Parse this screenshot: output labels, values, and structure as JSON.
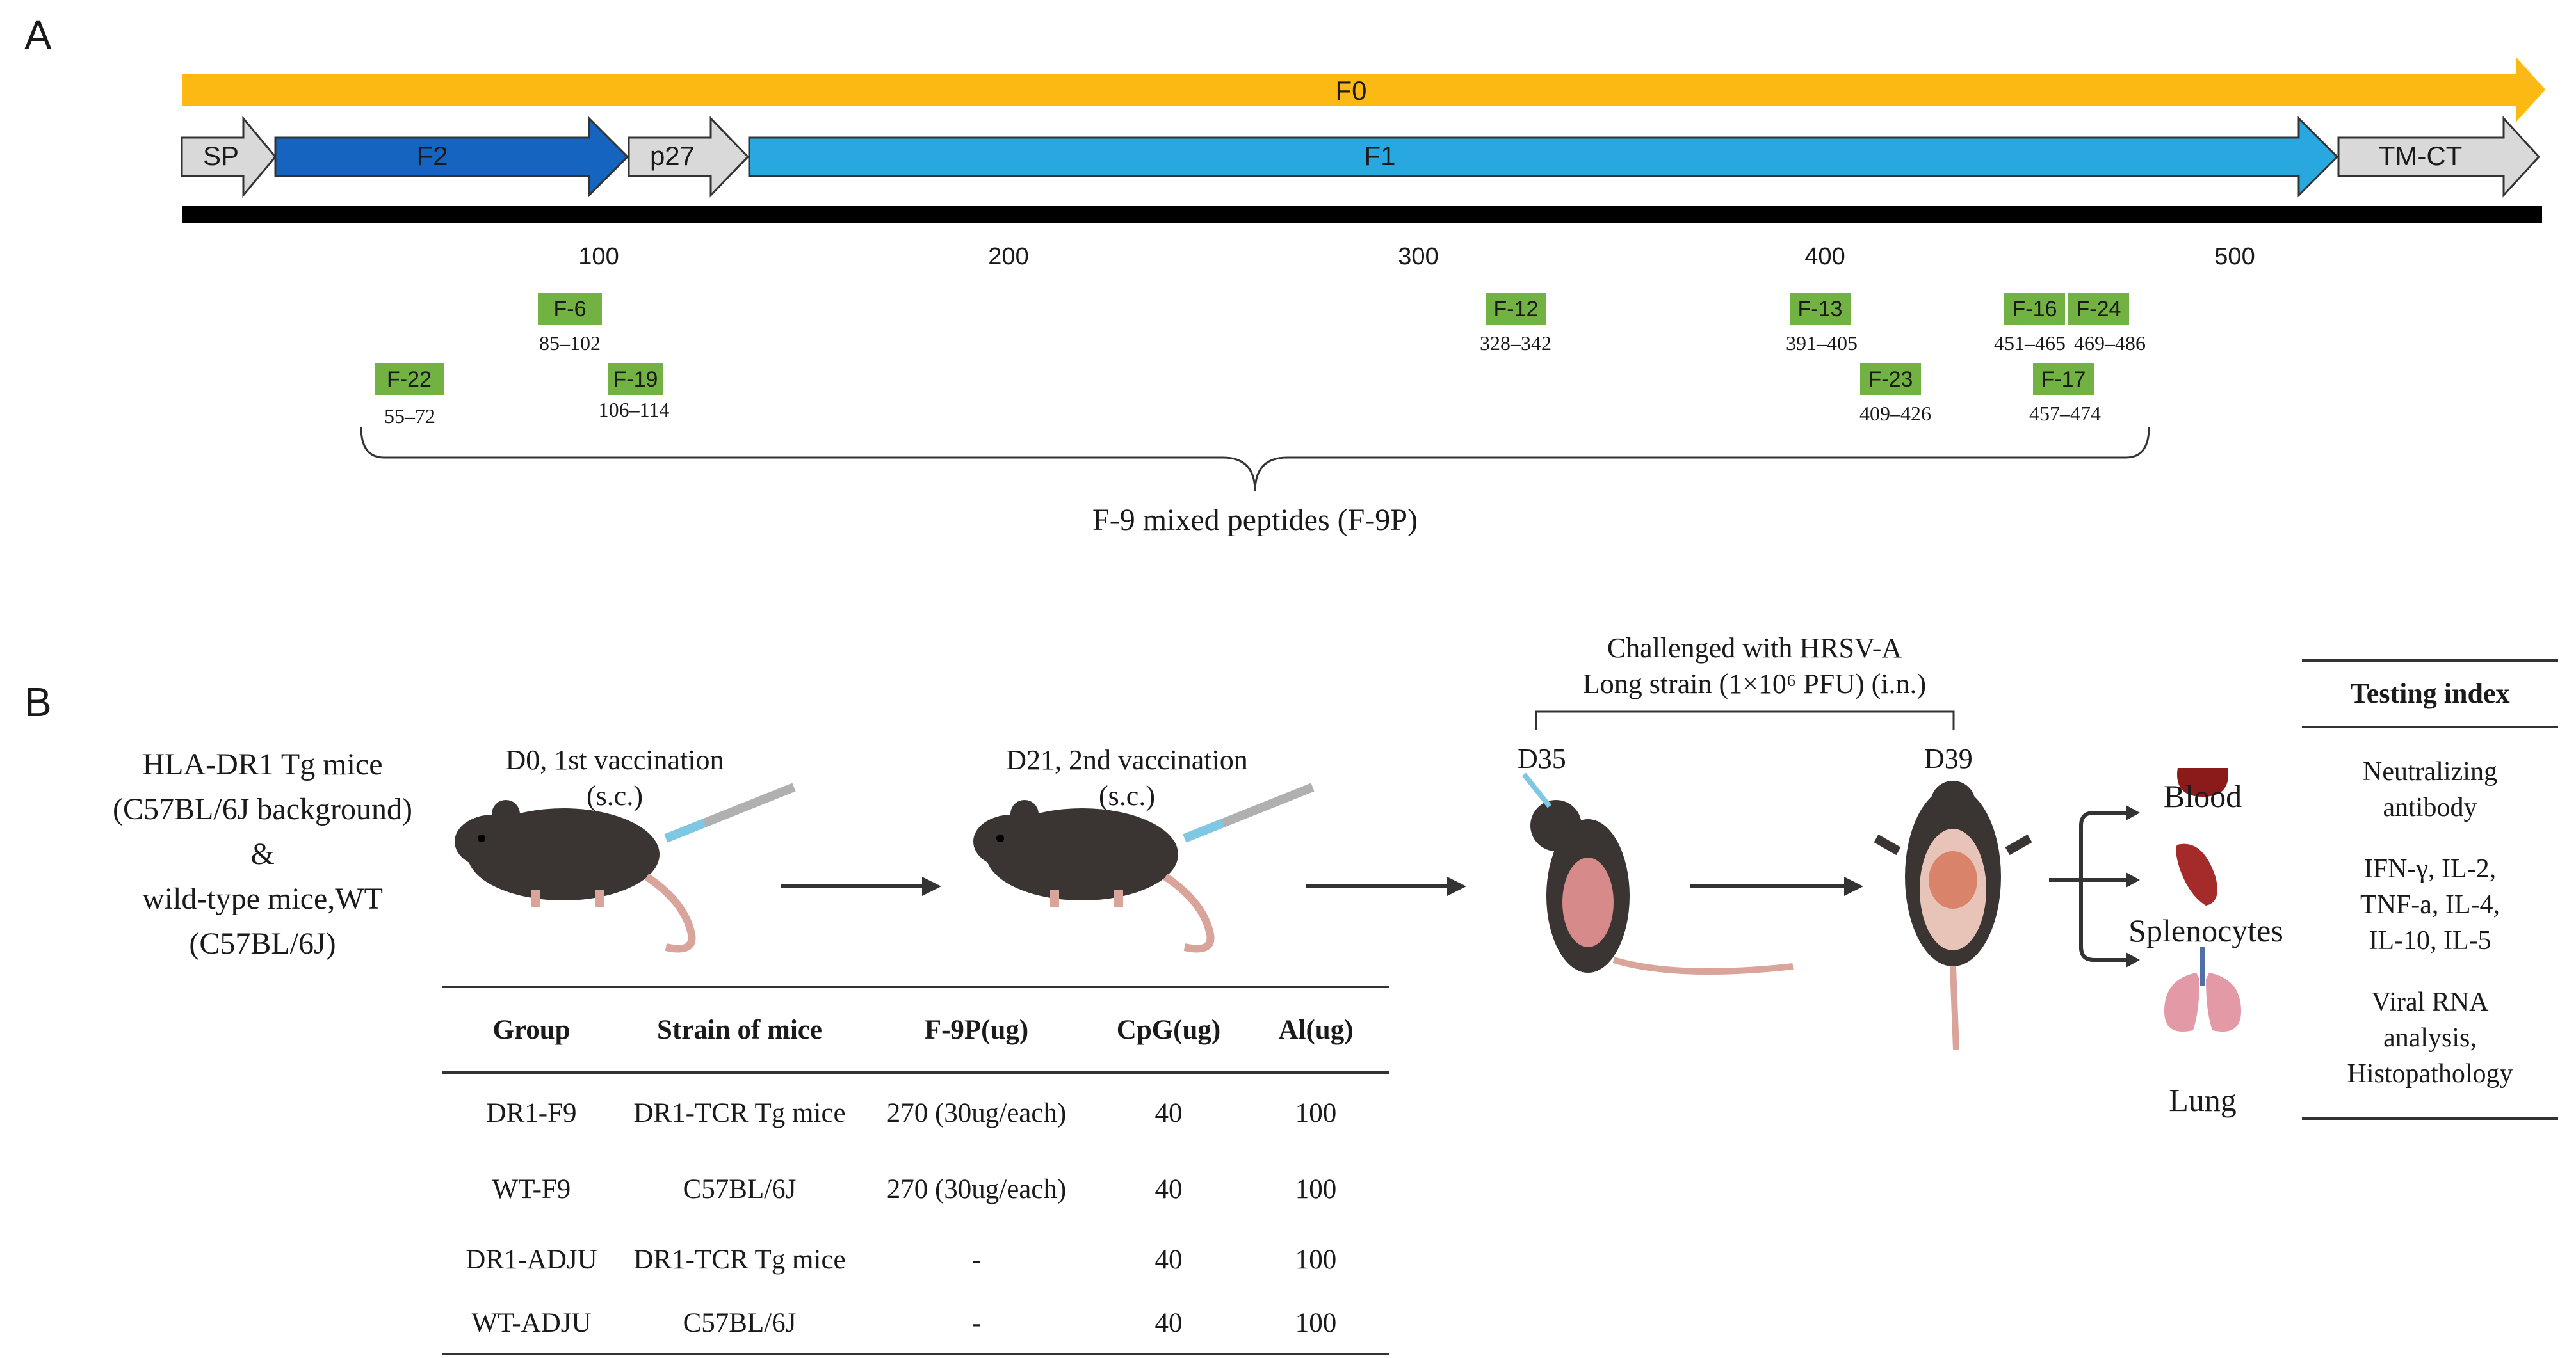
{
  "panel_a": {
    "letter": "A",
    "f0_label": "F0",
    "segments": {
      "sp": "SP",
      "f2": "F2",
      "p27": "p27",
      "f1": "F1",
      "tmct": "TM-CT"
    },
    "axis_ticks": [
      "100",
      "200",
      "300",
      "400",
      "500"
    ],
    "peptides": [
      {
        "name": "F-6",
        "range": "85–102"
      },
      {
        "name": "F-19",
        "range": "106–114"
      },
      {
        "name": "F-22",
        "range": "55–72"
      },
      {
        "name": "F-12",
        "range": "328–342"
      },
      {
        "name": "F-13",
        "range": "391–405"
      },
      {
        "name": "F-23",
        "range": "409–426"
      },
      {
        "name": "F-16",
        "range": "451–465"
      },
      {
        "name": "F-24",
        "range": "469–486"
      },
      {
        "name": "F-17",
        "range": "457–474"
      }
    ],
    "bracket_label": "F-9 mixed peptides (F-9P)",
    "colors": {
      "f0": "#fdb913",
      "f2": "#1565c0",
      "f1": "#29a8e0",
      "gray": "#d9d9d9",
      "peptide": "#72b243"
    }
  },
  "panel_b": {
    "letter": "B",
    "mice_desc": [
      "HLA-DR1 Tg mice",
      "(C57BL/6J background)",
      "&",
      "wild-type mice,WT",
      "(C57BL/6J)"
    ],
    "step1": [
      "D0, 1st vaccination",
      "(s.c.)"
    ],
    "step2": [
      "D21, 2nd vaccination",
      "(s.c.)"
    ],
    "challenge": [
      "Challenged with HRSV-A",
      "Long strain (1×10⁶ PFU) (i.n.)"
    ],
    "d35": "D35",
    "d39": "D39",
    "organs": [
      "Blood",
      "Splenocytes",
      "Lung"
    ],
    "testing": {
      "header": "Testing index",
      "items": [
        [
          "Neutralizing",
          "antibody"
        ],
        [
          "IFN-γ, IL-2,",
          "TNF-a, IL-4,",
          "IL-10, IL-5"
        ],
        [
          "Viral RNA",
          "analysis,",
          "Histopathology"
        ]
      ]
    },
    "table": {
      "headers": [
        "Group",
        "Strain of mice",
        "F-9P(ug)",
        "CpG(ug)",
        "Al(ug)"
      ],
      "rows": [
        [
          "DR1-F9",
          "DR1-TCR Tg mice",
          "270 (30ug/each)",
          "40",
          "100"
        ],
        [
          "WT-F9",
          "C57BL/6J",
          "270 (30ug/each)",
          "40",
          "100"
        ],
        [
          "DR1-ADJU",
          "DR1-TCR Tg mice",
          "-",
          "40",
          "100"
        ],
        [
          "WT-ADJU",
          "C57BL/6J",
          "-",
          "40",
          "100"
        ]
      ]
    }
  }
}
